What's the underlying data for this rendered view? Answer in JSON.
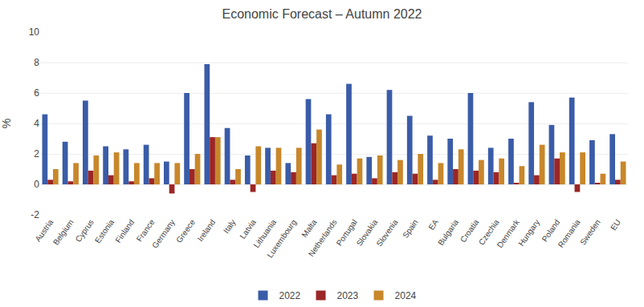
{
  "chart_data": {
    "type": "bar",
    "title": "Economic Forecast – Autumn 2022",
    "ylabel": "%",
    "categories": [
      "Austria",
      "Belgium",
      "Cyprus",
      "Estonia",
      "Finland",
      "France",
      "Germany",
      "Greece",
      "Ireland",
      "Italy",
      "Latvia",
      "Lithuania",
      "Luxembourg",
      "Malta",
      "Netherlands",
      "Portugal",
      "Slovakia",
      "Slovenia",
      "Spain",
      "EA",
      "Bulgaria",
      "Croatia",
      "Czechia",
      "Denmark",
      "Hungary",
      "Poland",
      "Romania",
      "Sweden",
      "EU"
    ],
    "series": [
      {
        "name": "2022",
        "color": "#3A5CA8",
        "values": [
          4.6,
          2.8,
          5.5,
          2.5,
          2.3,
          2.6,
          1.5,
          6.0,
          7.9,
          3.7,
          1.9,
          2.4,
          1.4,
          5.6,
          4.6,
          6.6,
          1.8,
          6.2,
          4.5,
          3.2,
          3.0,
          6.0,
          2.4,
          3.0,
          5.4,
          3.9,
          5.7,
          2.9,
          3.3
        ]
      },
      {
        "name": "2023",
        "color": "#9B2626",
        "values": [
          0.3,
          0.2,
          0.9,
          0.6,
          0.2,
          0.4,
          -0.6,
          1.0,
          3.1,
          0.3,
          -0.5,
          0.9,
          0.8,
          2.7,
          0.6,
          0.7,
          0.4,
          0.8,
          0.7,
          0.3,
          1.0,
          0.9,
          0.8,
          0.1,
          0.6,
          1.7,
          -0.5,
          0.1,
          0.3
        ]
      },
      {
        "name": "2024",
        "color": "#C8872A",
        "values": [
          1.0,
          1.4,
          1.9,
          2.1,
          1.4,
          1.4,
          1.4,
          2.0,
          3.1,
          1.0,
          2.5,
          2.4,
          2.4,
          3.6,
          1.3,
          1.7,
          1.9,
          1.6,
          2.0,
          1.4,
          2.3,
          1.6,
          1.7,
          1.2,
          2.6,
          2.1,
          2.1,
          0.7,
          1.5
        ]
      }
    ],
    "ylim": [
      -2,
      10
    ],
    "yticks": [
      -2,
      0,
      2,
      4,
      6,
      8,
      10
    ],
    "grid": true,
    "legend": "bottom"
  }
}
